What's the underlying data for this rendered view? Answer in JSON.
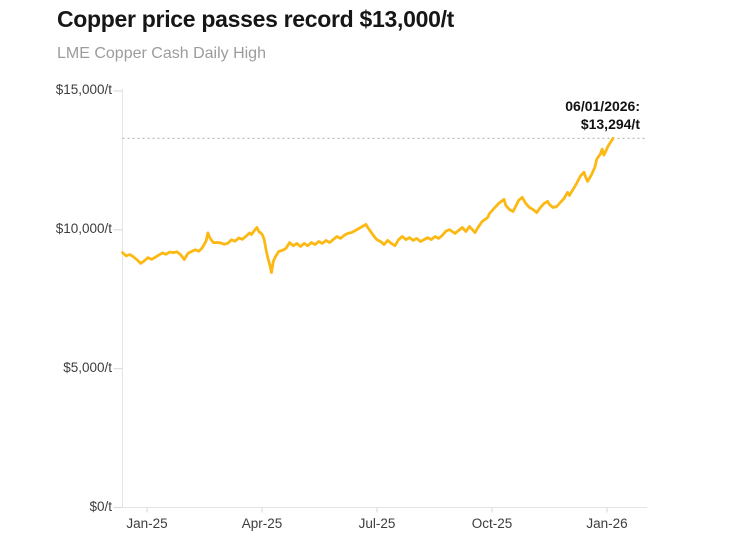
{
  "chart_data": {
    "type": "line",
    "title": "Copper price passes record $13,000/t",
    "subtitle": "LME Copper Cash Daily High",
    "xlabel": "",
    "ylabel": "",
    "ylim": [
      0,
      15000
    ],
    "x_domain": [
      0,
      288.7
    ],
    "grid": false,
    "legend_position": "none",
    "y_ticks": [
      {
        "value": 0,
        "label": "$0/t"
      },
      {
        "value": 5000,
        "label": "$5,000/t"
      },
      {
        "value": 10000,
        "label": "$10,000/t"
      },
      {
        "value": 15000,
        "label": "$15,000/t"
      }
    ],
    "x_ticks": [
      {
        "t": 13.5,
        "label": "Jan-25"
      },
      {
        "t": 76.8,
        "label": "Apr-25"
      },
      {
        "t": 140.1,
        "label": "Jul-25"
      },
      {
        "t": 203.4,
        "label": "Oct-25"
      },
      {
        "t": 266.7,
        "label": "Jan-26"
      }
    ],
    "record": {
      "value": 13294,
      "line_color": "#bdbdbd"
    },
    "annotation": {
      "date": "06/01/2026:",
      "price": "$13,294/t"
    },
    "series": [
      {
        "name": "LME Copper Cash Daily High",
        "color": "#FCB813",
        "points": [
          [
            0,
            9180
          ],
          [
            2,
            9060
          ],
          [
            4,
            9110
          ],
          [
            6,
            9030
          ],
          [
            8,
            8920
          ],
          [
            10,
            8790
          ],
          [
            12,
            8880
          ],
          [
            14,
            9000
          ],
          [
            16,
            8940
          ],
          [
            18,
            9010
          ],
          [
            20,
            9090
          ],
          [
            22,
            9170
          ],
          [
            24,
            9120
          ],
          [
            26,
            9200
          ],
          [
            28,
            9180
          ],
          [
            30,
            9210
          ],
          [
            32,
            9100
          ],
          [
            34,
            8930
          ],
          [
            36,
            9150
          ],
          [
            38,
            9220
          ],
          [
            40,
            9280
          ],
          [
            42,
            9230
          ],
          [
            44,
            9360
          ],
          [
            46,
            9600
          ],
          [
            47,
            9890
          ],
          [
            48,
            9720
          ],
          [
            50,
            9540
          ],
          [
            52,
            9545
          ],
          [
            54,
            9530
          ],
          [
            56,
            9480
          ],
          [
            58,
            9520
          ],
          [
            60,
            9640
          ],
          [
            62,
            9590
          ],
          [
            64,
            9710
          ],
          [
            66,
            9660
          ],
          [
            68,
            9770
          ],
          [
            70,
            9890
          ],
          [
            71,
            9830
          ],
          [
            73,
            10010
          ],
          [
            74,
            10085
          ],
          [
            75,
            9940
          ],
          [
            76,
            9890
          ],
          [
            77,
            9820
          ],
          [
            78,
            9650
          ],
          [
            79,
            9290
          ],
          [
            80,
            9000
          ],
          [
            81,
            8750
          ],
          [
            82,
            8460
          ],
          [
            83,
            8860
          ],
          [
            84,
            9010
          ],
          [
            86,
            9220
          ],
          [
            88,
            9260
          ],
          [
            90,
            9330
          ],
          [
            92,
            9540
          ],
          [
            94,
            9430
          ],
          [
            96,
            9510
          ],
          [
            98,
            9400
          ],
          [
            100,
            9510
          ],
          [
            102,
            9430
          ],
          [
            104,
            9540
          ],
          [
            106,
            9470
          ],
          [
            108,
            9580
          ],
          [
            110,
            9510
          ],
          [
            112,
            9620
          ],
          [
            114,
            9540
          ],
          [
            116,
            9650
          ],
          [
            118,
            9760
          ],
          [
            120,
            9690
          ],
          [
            122,
            9800
          ],
          [
            124,
            9870
          ],
          [
            126,
            9900
          ],
          [
            129,
            10010
          ],
          [
            132,
            10120
          ],
          [
            134,
            10195
          ],
          [
            135,
            10085
          ],
          [
            137,
            9900
          ],
          [
            139,
            9720
          ],
          [
            140,
            9650
          ],
          [
            142,
            9580
          ],
          [
            144,
            9470
          ],
          [
            146,
            9620
          ],
          [
            148,
            9510
          ],
          [
            150,
            9430
          ],
          [
            152,
            9650
          ],
          [
            154,
            9760
          ],
          [
            156,
            9650
          ],
          [
            158,
            9720
          ],
          [
            160,
            9620
          ],
          [
            162,
            9690
          ],
          [
            164,
            9580
          ],
          [
            166,
            9650
          ],
          [
            168,
            9720
          ],
          [
            170,
            9650
          ],
          [
            172,
            9760
          ],
          [
            174,
            9690
          ],
          [
            176,
            9800
          ],
          [
            178,
            9950
          ],
          [
            180,
            10010
          ],
          [
            183,
            9870
          ],
          [
            185,
            9975
          ],
          [
            187,
            10085
          ],
          [
            189,
            9940
          ],
          [
            191,
            10120
          ],
          [
            194,
            9900
          ],
          [
            196,
            10120
          ],
          [
            198,
            10300
          ],
          [
            201,
            10445
          ],
          [
            202,
            10590
          ],
          [
            205,
            10805
          ],
          [
            207,
            10950
          ],
          [
            210,
            11095
          ],
          [
            211,
            10880
          ],
          [
            213,
            10730
          ],
          [
            215,
            10660
          ],
          [
            217,
            10915
          ],
          [
            218,
            11060
          ],
          [
            220,
            11170
          ],
          [
            222,
            10950
          ],
          [
            224,
            10805
          ],
          [
            226,
            10730
          ],
          [
            228,
            10620
          ],
          [
            230,
            10805
          ],
          [
            232,
            10950
          ],
          [
            234,
            11025
          ],
          [
            235,
            10915
          ],
          [
            237,
            10805
          ],
          [
            239,
            10840
          ],
          [
            241,
            10985
          ],
          [
            243,
            11130
          ],
          [
            245,
            11350
          ],
          [
            246,
            11240
          ],
          [
            248,
            11460
          ],
          [
            250,
            11675
          ],
          [
            252,
            11930
          ],
          [
            254,
            12075
          ],
          [
            255,
            11890
          ],
          [
            256,
            11745
          ],
          [
            258,
            11965
          ],
          [
            260,
            12255
          ],
          [
            261,
            12545
          ],
          [
            263,
            12725
          ],
          [
            264,
            12905
          ],
          [
            265,
            12690
          ],
          [
            266,
            12835
          ],
          [
            267,
            12980
          ],
          [
            268,
            13090
          ],
          [
            270,
            13294
          ]
        ]
      }
    ]
  }
}
